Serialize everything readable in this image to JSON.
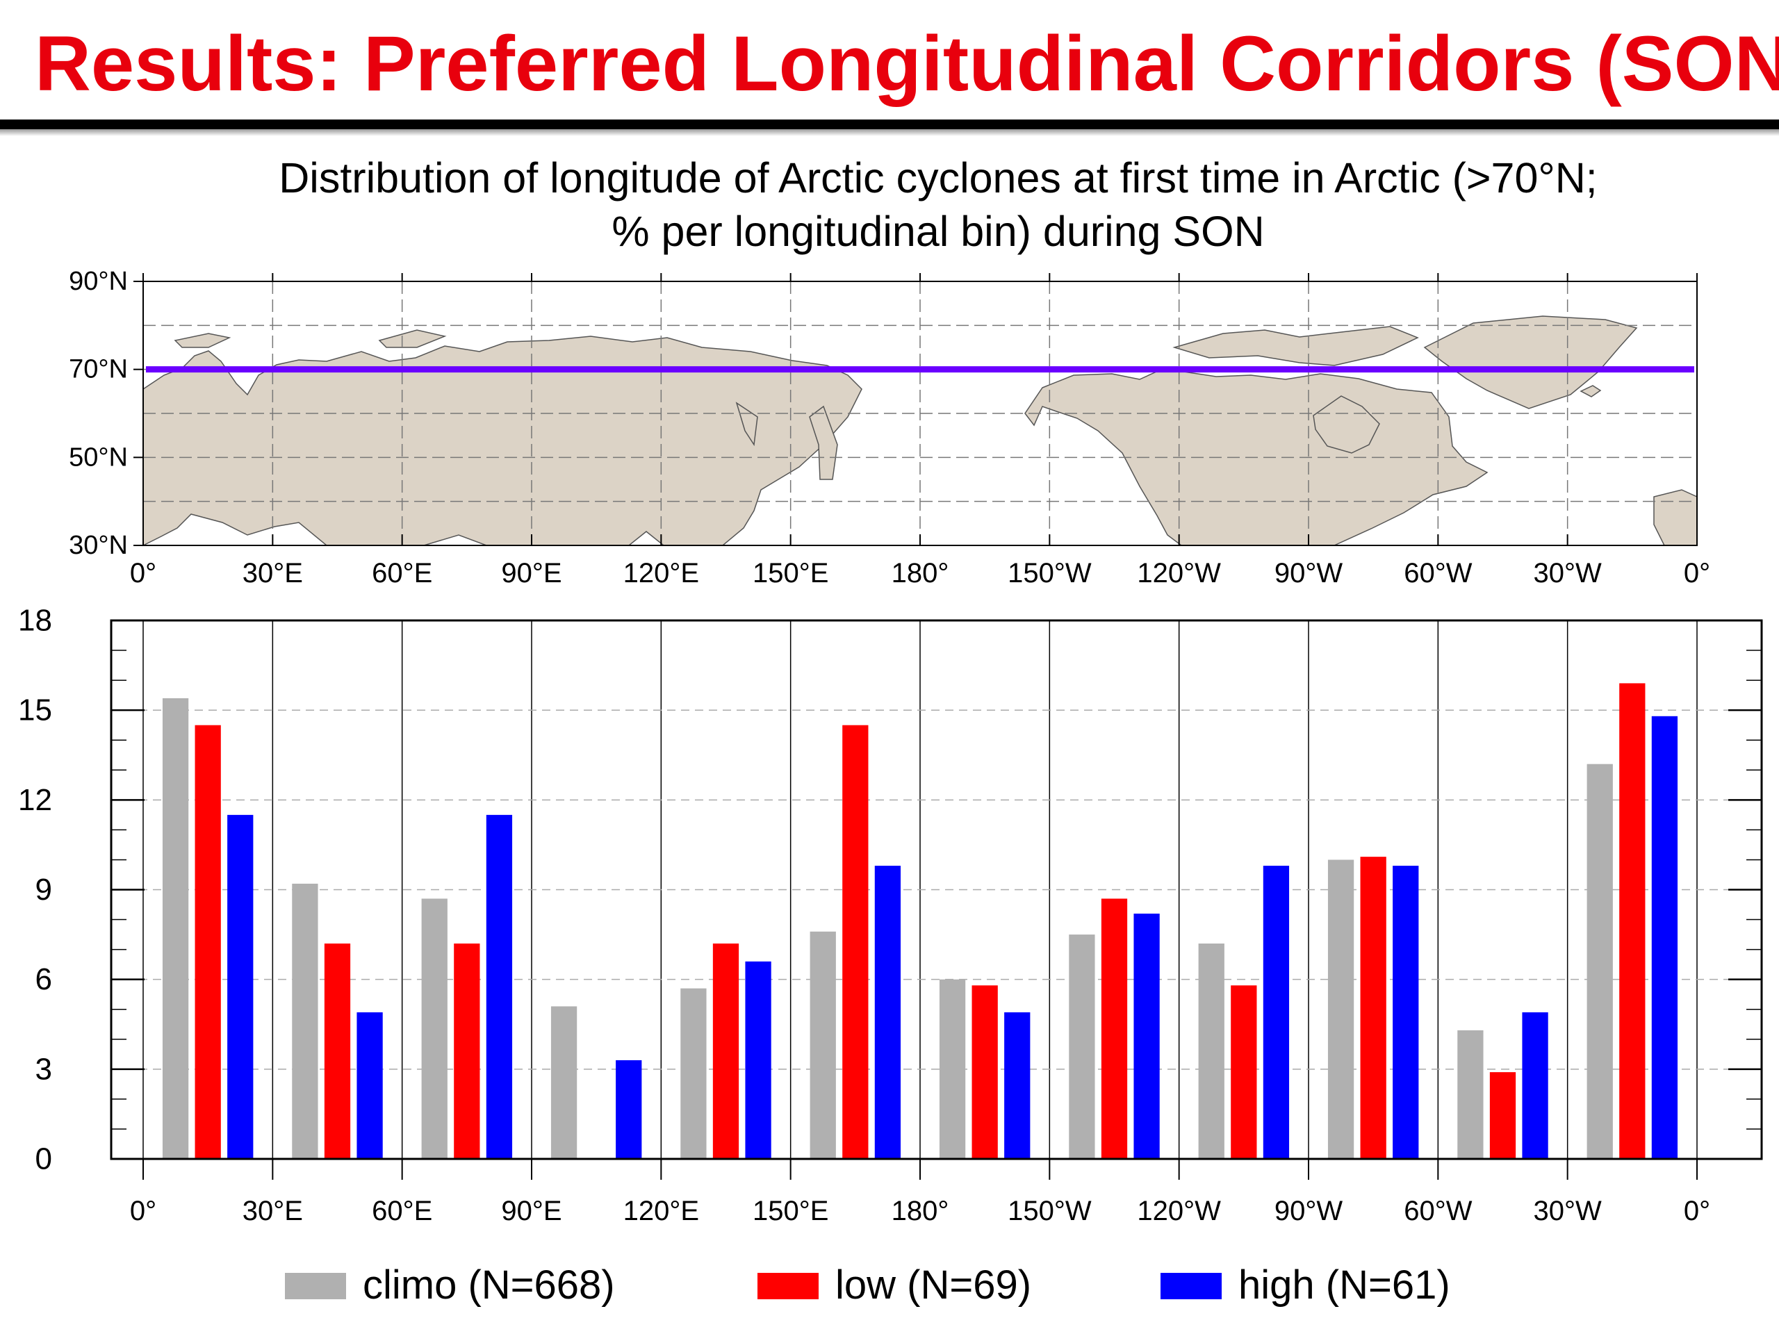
{
  "slide": {
    "title": "Results: Preferred Longitudinal Corridors (SON)",
    "title_color": "#e8000d"
  },
  "map": {
    "lat_labels": [
      "30°N",
      "50°N",
      "70°N",
      "90°N"
    ],
    "lon_labels": [
      "0°",
      "30°E",
      "60°E",
      "90°E",
      "120°E",
      "150°E",
      "180°",
      "150°W",
      "120°W",
      "90°W",
      "60°W",
      "30°W",
      "0°"
    ],
    "boundary_line_lat": 70,
    "boundary_line_color": "#6a00ff",
    "land_color": "#dcd3c6"
  },
  "chart_data": {
    "type": "bar",
    "title": "Distribution of longitude of Arctic cyclones at first time in Arctic (>70°N; % per longitudinal bin) during SON",
    "title_lines": [
      "Distribution of longitude of Arctic cyclones at first time in Arctic (>70°N;",
      "% per longitudinal bin) during SON"
    ],
    "xlabel": "",
    "ylabel": "",
    "x_tick_labels": [
      "0°",
      "30°E",
      "60°E",
      "90°E",
      "120°E",
      "150°E",
      "180°",
      "150°W",
      "120°W",
      "90°W",
      "60°W",
      "30°W",
      "0°"
    ],
    "categories": [
      "0°–30°E",
      "30°E–60°E",
      "60°E–90°E",
      "90°E–120°E",
      "120°E–150°E",
      "150°E–180°",
      "180°–150°W",
      "150°W–120°W",
      "120°W–90°W",
      "90°W–60°W",
      "60°W–30°W",
      "30°W–0°"
    ],
    "series": [
      {
        "name": "climo (N=668)",
        "color": "#b0b0b0",
        "values": [
          15.4,
          9.2,
          8.7,
          5.1,
          5.7,
          7.6,
          6.0,
          7.5,
          7.2,
          10.0,
          4.3,
          13.2
        ]
      },
      {
        "name": "low (N=69)",
        "color": "#ff0000",
        "values": [
          14.5,
          7.2,
          7.2,
          0,
          7.2,
          14.5,
          5.8,
          8.7,
          5.8,
          10.1,
          2.9,
          15.9
        ]
      },
      {
        "name": "high (N=61)",
        "color": "#0000ff",
        "values": [
          11.5,
          4.9,
          11.5,
          3.3,
          6.6,
          9.8,
          4.9,
          8.2,
          9.8,
          9.8,
          4.9,
          14.8
        ]
      }
    ],
    "ylim": [
      0,
      18
    ],
    "y_ticks": [
      0,
      3,
      6,
      9,
      12,
      15,
      18
    ],
    "grid": true,
    "legend_position": "bottom"
  }
}
